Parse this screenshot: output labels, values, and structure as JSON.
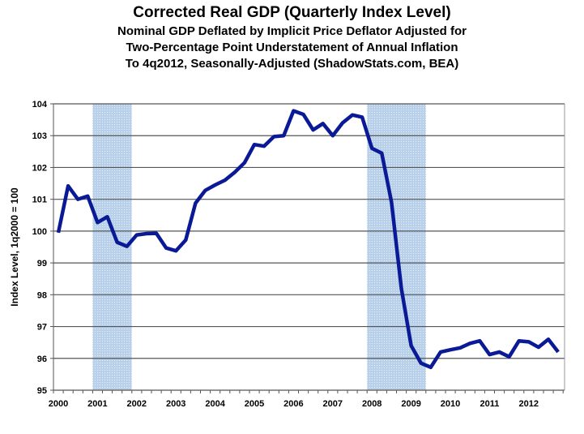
{
  "chart_data": {
    "type": "line",
    "title": "Corrected Real GDP (Quarterly Index Level)",
    "subtitle": [
      "Nominal GDP Deflated by Implicit Price Deflator Adjusted for",
      "Two-Percentage Point Understatement of Annual Inflation",
      "To 4q2012, Seasonally-Adjusted (ShadowStats.com, BEA)"
    ],
    "xlabel": "",
    "ylabel": "Index Level, 1q2000 = 100",
    "ylim": [
      95,
      104
    ],
    "yticks": [
      "95",
      "96",
      "97",
      "98",
      "99",
      "100",
      "101",
      "102",
      "103",
      "104"
    ],
    "xticks": [
      "2000",
      "2001",
      "2002",
      "2003",
      "2004",
      "2005",
      "2006",
      "2007",
      "2008",
      "2009",
      "2010",
      "2011",
      "2012"
    ],
    "grid": true,
    "line_color": "#0a1a96",
    "shade_color": "#b8d0ea",
    "recessions": [
      [
        "2001Q1",
        "2001Q4"
      ],
      [
        "2008Q1",
        "2009Q2"
      ]
    ],
    "series": [
      {
        "x_start": "2000Q1",
        "frequency": "quarterly",
        "values": [
          99.95,
          101.42,
          101.0,
          101.1,
          100.27,
          100.45,
          99.65,
          99.52,
          99.88,
          99.92,
          99.93,
          99.47,
          99.38,
          99.72,
          100.88,
          101.28,
          101.45,
          101.6,
          101.85,
          102.15,
          102.72,
          102.67,
          102.97,
          103.0,
          103.78,
          103.67,
          103.18,
          103.38,
          103.0,
          103.4,
          103.65,
          103.58,
          102.6,
          102.45,
          100.9,
          98.2,
          96.4,
          95.85,
          95.72,
          96.2,
          96.27,
          96.33,
          96.47,
          96.55,
          96.12,
          96.2,
          96.05,
          96.55,
          96.52,
          96.35,
          96.6,
          96.2
        ]
      }
    ]
  }
}
